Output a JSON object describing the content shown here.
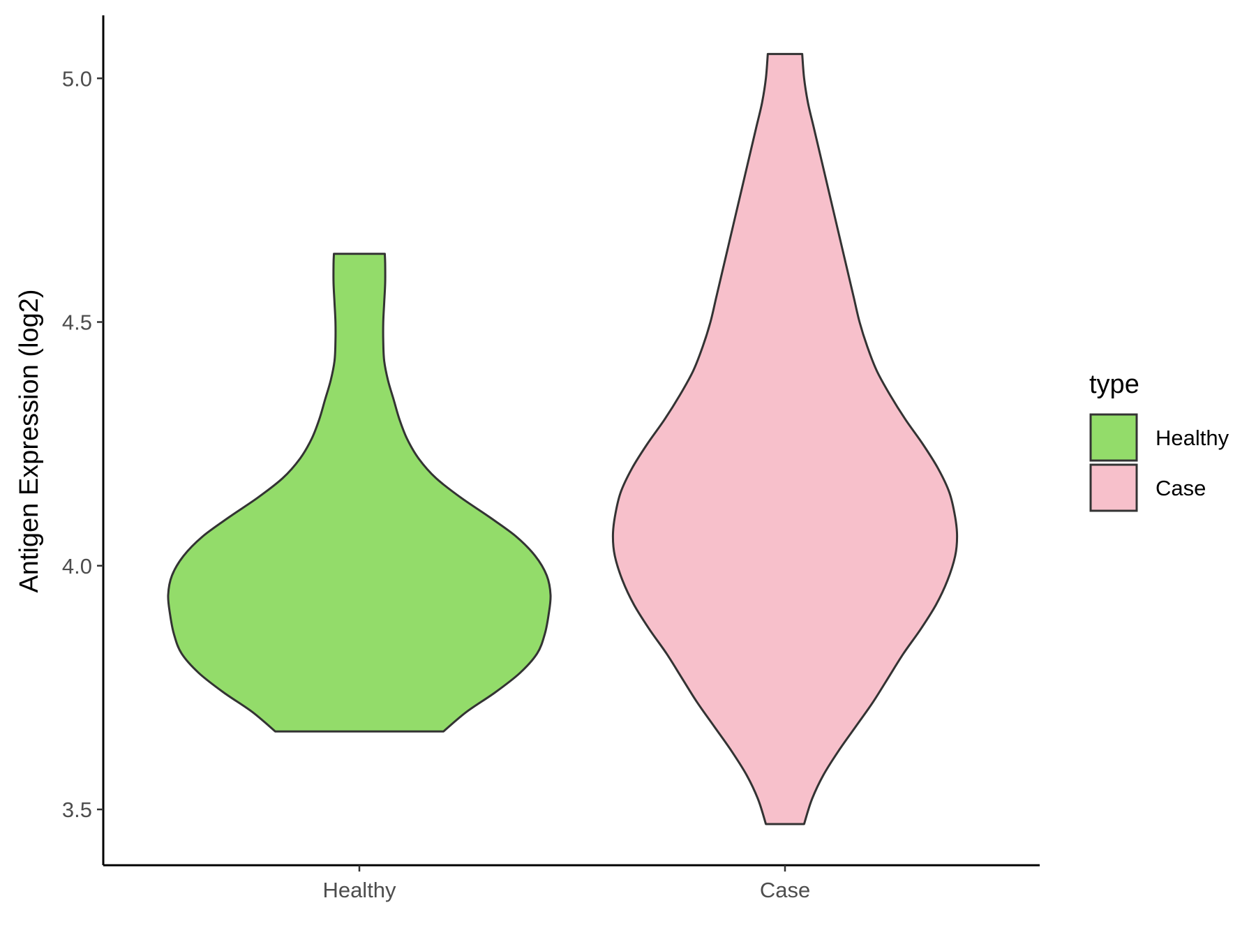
{
  "chart_data": {
    "type": "violin",
    "ylabel": "Antigen Expression (log2)",
    "xlabel": "",
    "ylim": [
      3.39,
      5.13
    ],
    "yticks": [
      "3.5",
      "4.0",
      "4.5",
      "5.0"
    ],
    "categories": [
      "Healthy",
      "Case"
    ],
    "legend": {
      "title": "type",
      "position": "right",
      "entries": [
        {
          "label": "Healthy",
          "color": "#93dc6a"
        },
        {
          "label": "Case",
          "color": "#f7c0cb"
        }
      ]
    },
    "series": [
      {
        "category": "Healthy",
        "color": "#93dc6a",
        "min": 3.66,
        "max": 4.64,
        "density": [
          [
            3.66,
            0.44
          ],
          [
            3.7,
            0.56
          ],
          [
            3.74,
            0.71
          ],
          [
            3.78,
            0.84
          ],
          [
            3.82,
            0.93
          ],
          [
            3.86,
            0.97
          ],
          [
            3.9,
            0.99
          ],
          [
            3.94,
            1.0
          ],
          [
            3.98,
            0.98
          ],
          [
            4.02,
            0.92
          ],
          [
            4.06,
            0.82
          ],
          [
            4.1,
            0.68
          ],
          [
            4.14,
            0.53
          ],
          [
            4.18,
            0.4
          ],
          [
            4.22,
            0.31
          ],
          [
            4.26,
            0.25
          ],
          [
            4.3,
            0.21
          ],
          [
            4.34,
            0.18
          ],
          [
            4.38,
            0.15
          ],
          [
            4.42,
            0.13
          ],
          [
            4.46,
            0.125
          ],
          [
            4.5,
            0.125
          ],
          [
            4.54,
            0.13
          ],
          [
            4.58,
            0.135
          ],
          [
            4.62,
            0.135
          ],
          [
            4.64,
            0.133
          ]
        ]
      },
      {
        "category": "Case",
        "color": "#f7c0cb",
        "min": 3.47,
        "max": 5.05,
        "density": [
          [
            3.47,
            0.1
          ],
          [
            3.52,
            0.14
          ],
          [
            3.57,
            0.2
          ],
          [
            3.62,
            0.28
          ],
          [
            3.67,
            0.37
          ],
          [
            3.72,
            0.46
          ],
          [
            3.77,
            0.54
          ],
          [
            3.82,
            0.62
          ],
          [
            3.87,
            0.71
          ],
          [
            3.92,
            0.79
          ],
          [
            3.97,
            0.85
          ],
          [
            4.02,
            0.89
          ],
          [
            4.06,
            0.9
          ],
          [
            4.1,
            0.89
          ],
          [
            4.15,
            0.86
          ],
          [
            4.2,
            0.8
          ],
          [
            4.25,
            0.72
          ],
          [
            4.3,
            0.63
          ],
          [
            4.35,
            0.55
          ],
          [
            4.4,
            0.48
          ],
          [
            4.45,
            0.43
          ],
          [
            4.5,
            0.39
          ],
          [
            4.55,
            0.36
          ],
          [
            4.6,
            0.33
          ],
          [
            4.65,
            0.3
          ],
          [
            4.7,
            0.27
          ],
          [
            4.75,
            0.24
          ],
          [
            4.8,
            0.21
          ],
          [
            4.85,
            0.18
          ],
          [
            4.9,
            0.15
          ],
          [
            4.95,
            0.12
          ],
          [
            5.0,
            0.1
          ],
          [
            5.05,
            0.09
          ]
        ]
      }
    ]
  }
}
